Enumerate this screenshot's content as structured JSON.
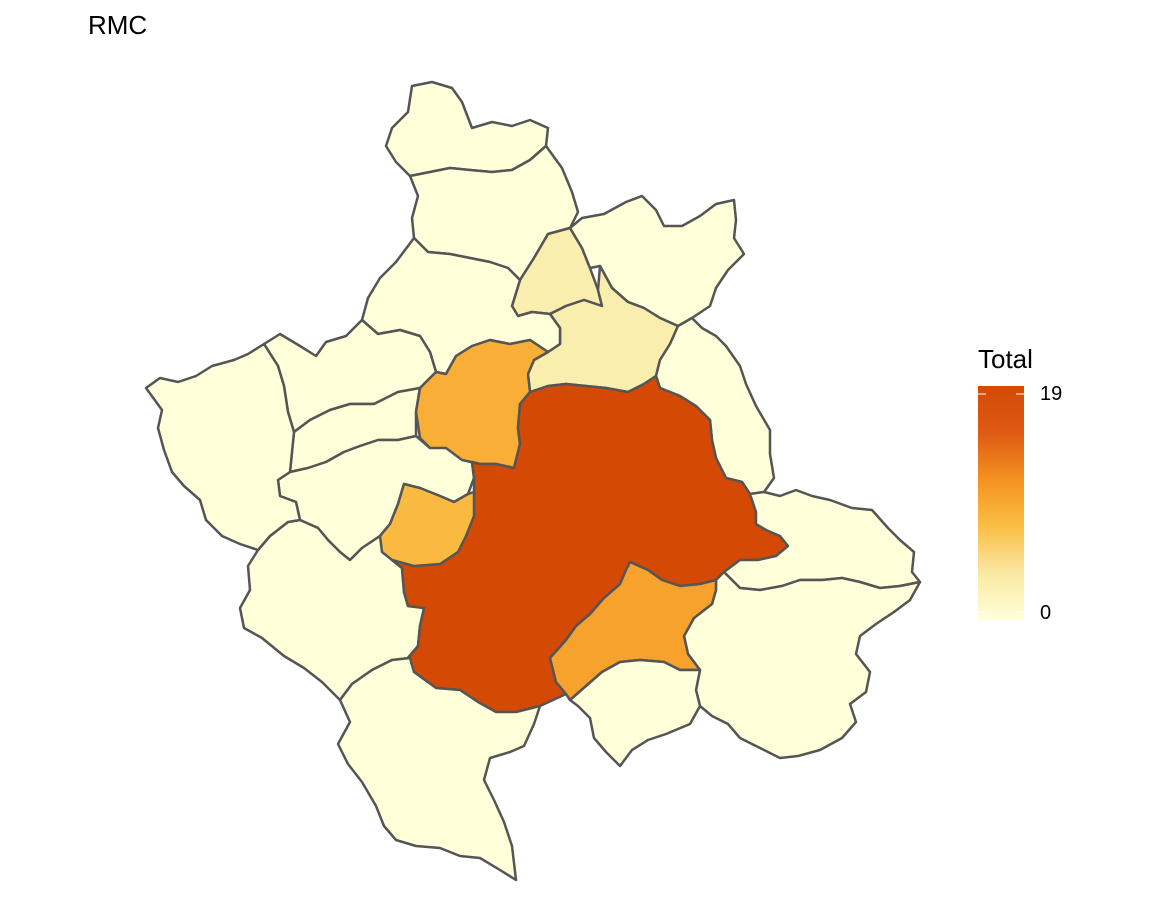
{
  "title": "RMC",
  "legend": {
    "title": "Total",
    "min_label": "0",
    "max_label": "19",
    "min": 0,
    "max": 19,
    "gradient": [
      "#ffffd9",
      "#f9e9a3",
      "#fbbf45",
      "#f4911f",
      "#df5a15",
      "#d44a04"
    ]
  },
  "map": {
    "border_color": "#555555",
    "regions": [
      {
        "name": "north-1",
        "value": 0
      },
      {
        "name": "north-2",
        "value": 0
      },
      {
        "name": "north-narrow",
        "value": 3
      },
      {
        "name": "north-east",
        "value": 0
      },
      {
        "name": "north-central",
        "value": 3
      },
      {
        "name": "north-west",
        "value": 0
      },
      {
        "name": "west-1",
        "value": 0
      },
      {
        "name": "west-2",
        "value": 0
      },
      {
        "name": "west-3",
        "value": 0
      },
      {
        "name": "west-4",
        "value": 0
      },
      {
        "name": "west-big",
        "value": 0
      },
      {
        "name": "central-west-orange",
        "value": 9
      },
      {
        "name": "east-strip",
        "value": 0
      },
      {
        "name": "central",
        "value": 19
      },
      {
        "name": "west-small-orange",
        "value": 8
      },
      {
        "name": "south-west",
        "value": 0
      },
      {
        "name": "east",
        "value": 0
      },
      {
        "name": "south-east-big",
        "value": 0
      },
      {
        "name": "south-orange",
        "value": 10
      },
      {
        "name": "south-small",
        "value": 0
      },
      {
        "name": "south",
        "value": 0
      }
    ]
  }
}
